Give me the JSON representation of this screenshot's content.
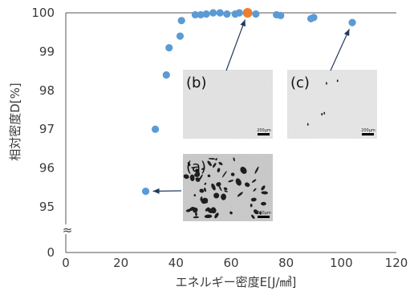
{
  "chart_data": {
    "type": "scatter",
    "xlabel": "エネルギー密度E[J/㎣]",
    "ylabel": "相対密度D[%]",
    "xlim": [
      0,
      120
    ],
    "ylim": [
      95,
      100
    ],
    "y_axis_break": true,
    "x_ticks": [
      "0",
      "20",
      "40",
      "60",
      "80",
      "100",
      "120"
    ],
    "y_ticks": [
      "95",
      "96",
      "97",
      "98",
      "99",
      "100"
    ],
    "y_zero_label": "0",
    "axis_break_symbol": "≈",
    "grid": false,
    "colors": {
      "points": "#5b9bd5",
      "highlight": "#ed7d31",
      "axis": "#555555"
    },
    "points": [
      {
        "x": 29,
        "y": 95.4
      },
      {
        "x": 32.5,
        "y": 97.0
      },
      {
        "x": 36.5,
        "y": 98.4
      },
      {
        "x": 37.5,
        "y": 99.1
      },
      {
        "x": 41.5,
        "y": 99.4
      },
      {
        "x": 42,
        "y": 99.8
      },
      {
        "x": 47,
        "y": 99.95
      },
      {
        "x": 49,
        "y": 99.95
      },
      {
        "x": 51,
        "y": 99.97
      },
      {
        "x": 53.5,
        "y": 100.0
      },
      {
        "x": 56,
        "y": 100.0
      },
      {
        "x": 58.5,
        "y": 99.97
      },
      {
        "x": 61.5,
        "y": 99.97
      },
      {
        "x": 63,
        "y": 100.0
      },
      {
        "x": 66,
        "y": 100.0,
        "highlight": true
      },
      {
        "x": 69,
        "y": 99.97
      },
      {
        "x": 76.5,
        "y": 99.95
      },
      {
        "x": 78,
        "y": 99.93
      },
      {
        "x": 89,
        "y": 99.85
      },
      {
        "x": 90,
        "y": 99.88
      },
      {
        "x": 104,
        "y": 99.75
      }
    ],
    "annotations": [
      {
        "label": "(a)",
        "point_index": 0,
        "style": "porous"
      },
      {
        "label": "(b)",
        "point_index": 14,
        "style": "smooth"
      },
      {
        "label": "(c)",
        "point_index": 20,
        "style": "sparse"
      }
    ],
    "inset_scale_text": "200μm"
  }
}
